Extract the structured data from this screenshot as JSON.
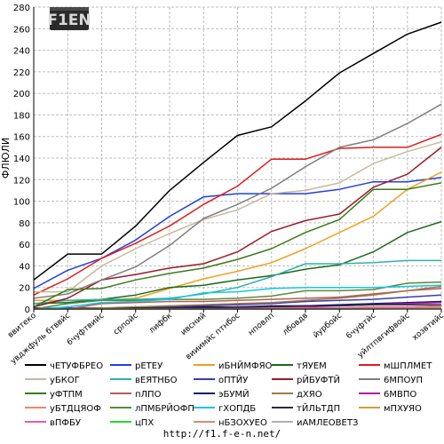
{
  "logo_text": "F1EN",
  "footer": {
    "url": "http://f1.f-e-n.net/"
  },
  "colors": {
    "axis": "#000000",
    "grid": "#bdbdbd",
    "background": "#ffffff"
  },
  "chart_data": {
    "type": "line",
    "ylabel": "ФЛЮЛИ",
    "xlabel": "",
    "ylim": [
      0,
      280
    ],
    "yticks": [
      0,
      20,
      40,
      60,
      80,
      100,
      120,
      140,
      160,
      180,
      200,
      220,
      240,
      260,
      280
    ],
    "grid": true,
    "legend_position": "bottom",
    "categories": [
      "ввитеко",
      "увджфуль бтввйс",
      "6чуфтвийс",
      "српойс",
      "лифбк",
      "ивсний",
      "вииимйс птнбос",
      "нповлп",
      "лбовдв",
      "йурбойс",
      "6чуфтйс",
      "уйлтпвгифвойс",
      "хозвтийс"
    ],
    "series": [
      {
        "name": "чЕТУФБРЕО",
        "color": "#000000",
        "values": [
          27,
          51,
          51,
          77,
          110,
          136,
          161,
          169,
          193,
          219,
          237,
          255,
          266
        ]
      },
      {
        "name": "рЕТЕУ",
        "color": "#1f3fe0",
        "values": [
          19,
          36,
          47,
          64,
          86,
          104,
          107,
          107,
          107,
          111,
          118,
          118,
          122
        ]
      },
      {
        "name": "иБНЙМФЯО",
        "color": "#f0a020",
        "values": [
          8,
          8,
          8,
          10,
          19,
          28,
          35,
          43,
          56,
          71,
          86,
          111,
          127
        ]
      },
      {
        "name": "тЯУЕМ",
        "color": "#1a6b1a",
        "values": [
          5,
          6,
          9,
          13,
          20,
          22,
          27,
          31,
          37,
          41,
          53,
          71,
          81
        ]
      },
      {
        "name": "мШПЛМЕТ",
        "color": "#e01b1b",
        "values": [
          13,
          28,
          47,
          61,
          77,
          97,
          114,
          139,
          139,
          149,
          150,
          150,
          162
        ]
      },
      {
        "name": "уБКОГ",
        "color": "#c8b89a",
        "values": [
          16,
          16,
          40,
          56,
          70,
          83,
          92,
          107,
          110,
          117,
          135,
          146,
          155
        ]
      },
      {
        "name": "вЕЯТНБО",
        "color": "#2fb0b0",
        "values": [
          5,
          8,
          9,
          9,
          10,
          14,
          20,
          30,
          42,
          42,
          43,
          45,
          45
        ]
      },
      {
        "name": "оПТЙУ",
        "color": "#3a3ab0",
        "values": [
          1,
          1,
          1,
          1,
          2,
          3,
          4,
          5,
          7,
          8,
          9,
          11,
          13
        ]
      },
      {
        "name": "рЙБУФТЙ",
        "color": "#9b1b2a",
        "values": [
          2,
          10,
          27,
          32,
          38,
          42,
          53,
          72,
          82,
          88,
          113,
          125,
          150
        ]
      },
      {
        "name": "6МПОУП",
        "color": "#7f7f7f",
        "values": [
          10,
          14,
          27,
          39,
          59,
          84,
          97,
          112,
          132,
          150,
          157,
          172,
          190
        ]
      },
      {
        "name": "уФТПМ",
        "color": "#3d7a1a",
        "values": [
          2,
          18,
          19,
          27,
          33,
          38,
          46,
          56,
          71,
          83,
          111,
          111,
          117
        ]
      },
      {
        "name": "пЛПО",
        "color": "#b85a5a",
        "values": [
          0,
          0,
          5,
          6,
          7,
          7,
          8,
          9,
          10,
          11,
          14,
          17,
          19
        ]
      },
      {
        "name": "эБУМЙ",
        "color": "#1a1a6b",
        "values": [
          0,
          0,
          1,
          1,
          1,
          2,
          2,
          3,
          3,
          4,
          5,
          6,
          7
        ]
      },
      {
        "name": "дХЯО",
        "color": "#9e7b4a",
        "values": [
          0,
          0,
          1,
          2,
          3,
          4,
          5,
          6,
          8,
          10,
          13,
          17,
          21
        ]
      },
      {
        "name": "6МВПО",
        "color": "#b01bb0",
        "values": [
          0,
          0,
          0,
          0,
          1,
          1,
          1,
          2,
          2,
          3,
          4,
          5,
          6
        ]
      },
      {
        "name": "уБТДЦЯОФ",
        "color": "#e88a6a",
        "values": [
          0,
          0,
          0,
          0,
          0,
          0,
          0,
          0,
          0,
          1,
          1,
          1,
          2
        ]
      },
      {
        "name": "лПМБРЙОФП",
        "color": "#5a8a3a",
        "values": [
          0,
          5,
          8,
          8,
          9,
          9,
          10,
          12,
          17,
          17,
          18,
          24,
          25
        ]
      },
      {
        "name": "гХОПДБ",
        "color": "#15c8e0",
        "values": [
          0,
          2,
          6,
          7,
          9,
          15,
          16,
          19,
          20,
          20,
          20,
          21,
          22
        ]
      },
      {
        "name": "тЙЛЬТДП",
        "color": "#2a2a3a",
        "values": [
          0,
          0,
          0,
          1,
          1,
          1,
          2,
          2,
          3,
          3,
          4,
          4,
          4
        ]
      },
      {
        "name": "мПХУЯО",
        "color": "#d0a030",
        "values": [
          0,
          0,
          0,
          0,
          0,
          0,
          0,
          0,
          1,
          1,
          1,
          1,
          2
        ]
      },
      {
        "name": "вПФБУ",
        "color": "#e060a0",
        "values": [
          0,
          0,
          0,
          0,
          0,
          0,
          0,
          1,
          1,
          1,
          2,
          2,
          3
        ]
      },
      {
        "name": "цПХ",
        "color": "#22dd22",
        "values": [
          0,
          0,
          0,
          0,
          0,
          0,
          0,
          0,
          0,
          0,
          0,
          1,
          1
        ]
      },
      {
        "name": "нБЗОХУЕО",
        "color": "#d48a7a",
        "values": [
          0,
          0,
          0,
          0,
          0,
          0,
          0,
          0,
          0,
          0,
          1,
          1,
          1
        ]
      },
      {
        "name": "иАМЛЕОВЕТЗ",
        "color": "#b0b0b0",
        "values": [
          0,
          0,
          0,
          0,
          0,
          0,
          0,
          0,
          0,
          0,
          0,
          0,
          0
        ]
      }
    ]
  }
}
